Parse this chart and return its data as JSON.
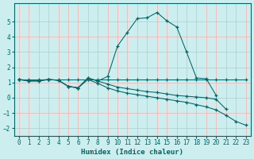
{
  "xlabel": "Humidex (Indice chaleur)",
  "bg_color": "#cceeee",
  "line_color": "#006666",
  "grid_color": "#ffaaaa",
  "xlim": [
    -0.5,
    23.5
  ],
  "ylim": [
    -2.5,
    6.2
  ],
  "yticks": [
    -2,
    -1,
    0,
    1,
    2,
    3,
    4,
    5
  ],
  "xticks": [
    0,
    1,
    2,
    3,
    4,
    5,
    6,
    7,
    8,
    9,
    10,
    11,
    12,
    13,
    14,
    15,
    16,
    17,
    18,
    19,
    20,
    21,
    22,
    23
  ],
  "series": [
    {
      "x": [
        0,
        1,
        2,
        3,
        4,
        5,
        6,
        7,
        8,
        9,
        10,
        11,
        12,
        13,
        14,
        15,
        16,
        17,
        18,
        19,
        20
      ],
      "y": [
        1.2,
        1.15,
        1.15,
        1.2,
        1.15,
        0.75,
        0.65,
        1.3,
        1.1,
        1.4,
        3.4,
        4.3,
        5.2,
        5.25,
        5.6,
        5.05,
        4.65,
        3.0,
        1.3,
        1.25,
        0.15
      ]
    },
    {
      "x": [
        0,
        1,
        2,
        3,
        4,
        5,
        6,
        7,
        8,
        9,
        10,
        11,
        12,
        13,
        14,
        15,
        16,
        17,
        18,
        19,
        20,
        21,
        22,
        23
      ],
      "y": [
        1.2,
        1.2,
        1.2,
        1.2,
        1.2,
        1.2,
        1.2,
        1.2,
        1.2,
        1.2,
        1.2,
        1.2,
        1.2,
        1.2,
        1.2,
        1.2,
        1.2,
        1.2,
        1.2,
        1.2,
        1.2,
        1.2,
        1.2,
        1.2
      ]
    },
    {
      "x": [
        0,
        1,
        2,
        3,
        4,
        5,
        6,
        7,
        8,
        9,
        10,
        11,
        12,
        13,
        14,
        15,
        16,
        17,
        18,
        19,
        20,
        21
      ],
      "y": [
        1.2,
        1.1,
        1.1,
        1.2,
        1.15,
        0.75,
        0.65,
        1.3,
        1.1,
        0.9,
        0.7,
        0.6,
        0.5,
        0.4,
        0.35,
        0.25,
        0.15,
        0.1,
        0.05,
        0.0,
        -0.1,
        -0.75
      ]
    },
    {
      "x": [
        0,
        1,
        2,
        3,
        4,
        5,
        6,
        7,
        8,
        9,
        10,
        11,
        12,
        13,
        14,
        15,
        16,
        17,
        18,
        19,
        20,
        21,
        22,
        23
      ],
      "y": [
        1.2,
        1.1,
        1.1,
        1.2,
        1.15,
        0.75,
        0.65,
        1.2,
        0.95,
        0.65,
        0.45,
        0.3,
        0.2,
        0.1,
        0.0,
        -0.1,
        -0.2,
        -0.3,
        -0.45,
        -0.6,
        -0.8,
        -1.15,
        -1.55,
        -1.8
      ]
    }
  ]
}
